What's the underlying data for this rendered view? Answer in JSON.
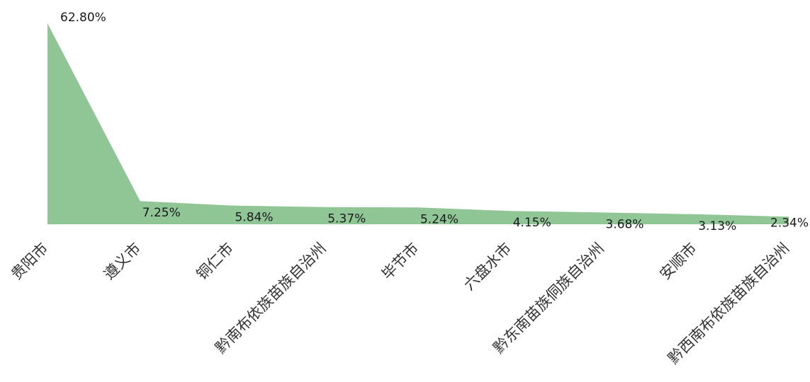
{
  "chart_data": {
    "type": "area",
    "categories": [
      "贵阳市",
      "遵义市",
      "铜仁市",
      "黔南布依族苗族自治州",
      "毕节市",
      "六盘水市",
      "黔东南苗族侗族自治州",
      "安顺市",
      "黔西南布依族苗族自治州"
    ],
    "values": [
      62.8,
      7.25,
      5.84,
      5.37,
      5.24,
      4.15,
      3.68,
      3.13,
      2.34
    ],
    "data_labels": [
      "62.80%",
      "7.25%",
      "5.84%",
      "5.37%",
      "5.24%",
      "4.15%",
      "3.68%",
      "3.13%",
      "2.34%"
    ],
    "ylim": [
      0,
      62.8
    ],
    "grid": false,
    "legend": "none",
    "fill_color": "#90c596"
  }
}
